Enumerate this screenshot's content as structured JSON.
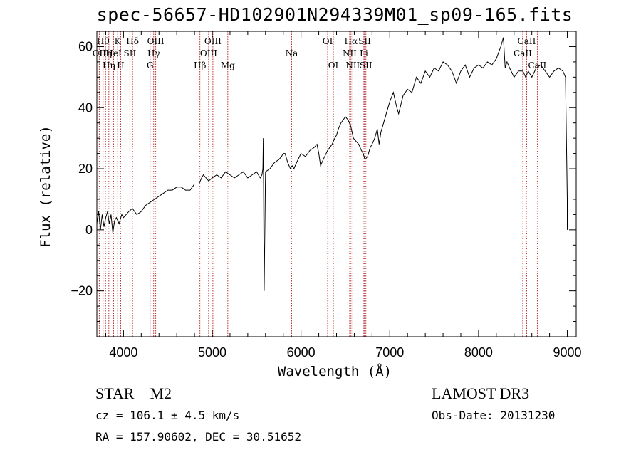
{
  "header": {
    "title": "spec-56657-HD102901N294339M01_sp09-165.fits"
  },
  "footer": {
    "obj_class": "STAR",
    "subclass": "M2",
    "survey": "LAMOST DR3",
    "cz": "cz = 106.1 ± 4.5 km/s",
    "obs_date": "Obs-Date: 20131230",
    "radec": "RA = 157.90602, DEC =  30.51652"
  },
  "chart_data": {
    "type": "line",
    "title": "spec-56657-HD102901N294339M01_sp09-165.fits",
    "xlabel": "Wavelength (Å)",
    "ylabel": "Flux (relative)",
    "xlim": [
      3700,
      9100
    ],
    "ylim": [
      -35,
      65
    ],
    "xticks": [
      4000,
      5000,
      6000,
      7000,
      8000,
      9000
    ],
    "yticks": [
      -20,
      0,
      20,
      40,
      60
    ],
    "series": [
      {
        "name": "flux",
        "x": [
          3700,
          3720,
          3740,
          3760,
          3780,
          3800,
          3820,
          3840,
          3860,
          3880,
          3900,
          3920,
          3950,
          3980,
          4000,
          4030,
          4060,
          4100,
          4150,
          4200,
          4250,
          4300,
          4350,
          4400,
          4450,
          4500,
          4550,
          4600,
          4650,
          4700,
          4750,
          4800,
          4850,
          4880,
          4900,
          4930,
          4960,
          5000,
          5050,
          5100,
          5150,
          5200,
          5250,
          5300,
          5350,
          5400,
          5450,
          5500,
          5540,
          5560,
          5570,
          5575,
          5585,
          5600,
          5650,
          5700,
          5750,
          5780,
          5800,
          5820,
          5850,
          5880,
          5900,
          5920,
          5950,
          6000,
          6050,
          6100,
          6150,
          6180,
          6200,
          6220,
          6250,
          6300,
          6350,
          6380,
          6400,
          6420,
          6450,
          6500,
          6530,
          6560,
          6590,
          6620,
          6650,
          6680,
          6700,
          6720,
          6750,
          6780,
          6800,
          6830,
          6860,
          6880,
          6900,
          6930,
          6960,
          7000,
          7040,
          7080,
          7100,
          7150,
          7200,
          7250,
          7300,
          7350,
          7400,
          7450,
          7500,
          7550,
          7600,
          7650,
          7700,
          7750,
          7800,
          7850,
          7900,
          7950,
          8000,
          8050,
          8100,
          8150,
          8200,
          8250,
          8280,
          8300,
          8320,
          8350,
          8400,
          8450,
          8500,
          8530,
          8560,
          8600,
          8650,
          8700,
          8750,
          8800,
          8850,
          8900,
          8950,
          8980,
          9000,
          9000
        ],
        "y": [
          2,
          6,
          0,
          5,
          1,
          4,
          6,
          2,
          5,
          -1,
          3,
          4,
          2,
          5,
          4,
          5,
          6,
          7,
          5,
          6,
          8,
          9,
          10,
          11,
          12,
          13,
          13,
          14,
          14,
          13,
          13,
          15,
          15,
          17,
          18,
          17,
          16,
          17,
          18,
          17,
          19,
          18,
          17,
          18,
          19,
          17,
          18,
          19,
          17,
          18,
          20,
          30,
          -20,
          19,
          20,
          22,
          23,
          24,
          25,
          25,
          22,
          20,
          21,
          20,
          22,
          25,
          24,
          26,
          27,
          28,
          25,
          21,
          23,
          26,
          28,
          30,
          31,
          33,
          35,
          37,
          36,
          34,
          30,
          29,
          28,
          26,
          25,
          23,
          24,
          27,
          28,
          30,
          33,
          28,
          32,
          35,
          38,
          42,
          45,
          40,
          38,
          44,
          46,
          45,
          50,
          48,
          52,
          50,
          53,
          52,
          55,
          54,
          52,
          48,
          52,
          54,
          50,
          53,
          54,
          53,
          55,
          54,
          56,
          60,
          63,
          53,
          55,
          53,
          50,
          52,
          52,
          50,
          52,
          50,
          53,
          54,
          52,
          50,
          52,
          53,
          52,
          50,
          10,
          0
        ]
      }
    ],
    "lines": [
      {
        "w": 3727,
        "label": "OII",
        "row": 2
      },
      {
        "w": 3770,
        "label": "Hθ",
        "row": 1
      },
      {
        "w": 3798,
        "label": "Hη",
        "row": 2
      },
      {
        "w": 3835,
        "label": "Hη",
        "row": 3
      },
      {
        "w": 3889,
        "label": "HeI",
        "row": 2
      },
      {
        "w": 3934,
        "label": "K",
        "row": 1
      },
      {
        "w": 3969,
        "label": "H",
        "row": 3
      },
      {
        "w": 4072,
        "label": "SII",
        "row": 2
      },
      {
        "w": 4102,
        "label": "Hδ",
        "row": 1
      },
      {
        "w": 4300,
        "label": "G",
        "row": 3
      },
      {
        "w": 4340,
        "label": "Hγ",
        "row": 2
      },
      {
        "w": 4363,
        "label": "OIII",
        "row": 1
      },
      {
        "w": 4861,
        "label": "Hβ",
        "row": 3
      },
      {
        "w": 4959,
        "label": "OIII",
        "row": 2
      },
      {
        "w": 5007,
        "label": "OIII",
        "row": 1
      },
      {
        "w": 5175,
        "label": "Mg",
        "row": 3
      },
      {
        "w": 5894,
        "label": "Na",
        "row": 2
      },
      {
        "w": 6300,
        "label": "OI",
        "row": 1
      },
      {
        "w": 6364,
        "label": "OI",
        "row": 3
      },
      {
        "w": 6548,
        "label": "NII",
        "row": 2
      },
      {
        "w": 6563,
        "label": "Hα",
        "row": 1
      },
      {
        "w": 6583,
        "label": "NII",
        "row": 3
      },
      {
        "w": 6708,
        "label": "Li",
        "row": 2
      },
      {
        "w": 6717,
        "label": "SII",
        "row": 1
      },
      {
        "w": 6731,
        "label": "SII",
        "row": 3
      },
      {
        "w": 8498,
        "label": "CaII",
        "row": 2
      },
      {
        "w": 8542,
        "label": "CaII",
        "row": 1
      },
      {
        "w": 8662,
        "label": "CaII",
        "row": 3
      }
    ]
  }
}
